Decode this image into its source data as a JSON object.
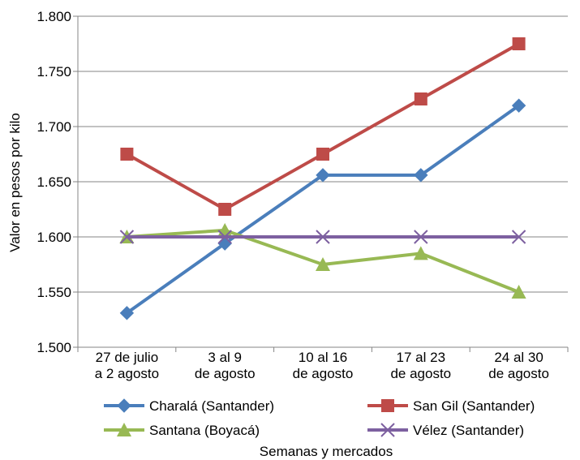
{
  "chart_data": {
    "type": "line",
    "categories": [
      [
        "27 de julio",
        "a 2 agosto"
      ],
      [
        "3 al 9",
        "de agosto"
      ],
      [
        "10 al 16",
        "de agosto"
      ],
      [
        "17 al 23",
        "de agosto"
      ],
      [
        "24 al 30",
        "de agosto"
      ]
    ],
    "series": [
      {
        "name": "Charalá (Santander)",
        "color": "#4a7ebb",
        "marker": "diamond",
        "values": [
          1531,
          1594,
          1656,
          1656,
          1719
        ]
      },
      {
        "name": "San Gil (Santander)",
        "color": "#be4b48",
        "marker": "square",
        "values": [
          1675,
          1625,
          1675,
          1725,
          1775
        ]
      },
      {
        "name": "Santana (Boyacá)",
        "color": "#98b954",
        "marker": "triangle",
        "values": [
          1600,
          1606,
          1575,
          1585,
          1550
        ]
      },
      {
        "name": "Vélez (Santander)",
        "color": "#7d60a0",
        "marker": "x",
        "values": [
          1600,
          1600,
          1600,
          1600,
          1600
        ]
      }
    ],
    "ylim": [
      1500,
      1800
    ],
    "yticks": [
      1500,
      1550,
      1600,
      1650,
      1700,
      1750,
      1800
    ],
    "ytick_labels": [
      "1.500",
      "1.550",
      "1.600",
      "1.650",
      "1.700",
      "1.750",
      "1.800"
    ],
    "ylabel": "Valor en pesos por kilo",
    "xlabel": "Semanas y mercados",
    "grid": true,
    "legend": "bottom"
  }
}
